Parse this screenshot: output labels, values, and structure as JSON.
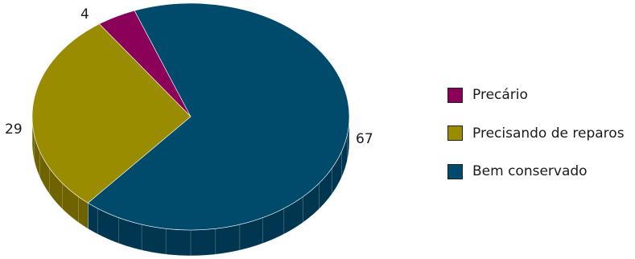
{
  "chart_data": {
    "type": "pie",
    "title": "",
    "categories": [
      "Precário",
      "Precisando de reparos",
      "Bem conservado"
    ],
    "values": [
      4,
      29,
      67
    ],
    "data_labels": [
      "4",
      "29",
      "67"
    ],
    "colors": [
      "#8b0058",
      "#9a8c00",
      "#004a6c"
    ],
    "side_colors": [
      "#5e003b",
      "#6e6300",
      "#003650"
    ],
    "style": "3d",
    "legend": "right"
  },
  "legend": {
    "items": [
      {
        "label": "Precário",
        "color": "#8b0058"
      },
      {
        "label": "Precisando de reparos",
        "color": "#9a8c00"
      },
      {
        "label": "Bem conservado",
        "color": "#004a6c"
      }
    ]
  }
}
